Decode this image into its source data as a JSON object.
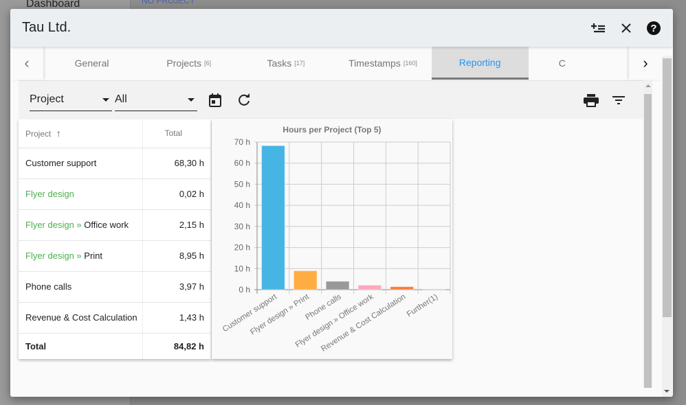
{
  "background": {
    "sidebar_item": "Dashboard",
    "project_label": "NO PROJECT"
  },
  "modal": {
    "title": "Tau Ltd.",
    "icons": [
      "playlist-add-icon",
      "close-icon",
      "help-icon"
    ]
  },
  "tabs": [
    {
      "label": "General",
      "count": ""
    },
    {
      "label": "Projects",
      "count": "[6]"
    },
    {
      "label": "Tasks",
      "count": "[17]"
    },
    {
      "label": "Timestamps",
      "count": "[160]"
    },
    {
      "label": "Reporting",
      "count": "",
      "active": true
    },
    {
      "label": "C",
      "count": ""
    }
  ],
  "toolbar": {
    "group_by": "Project",
    "filter": "All"
  },
  "table": {
    "headers": {
      "project": "Project",
      "total": "Total"
    },
    "rows": [
      {
        "parent": "",
        "name": "Customer support",
        "total": "68,30 h"
      },
      {
        "parent": "Flyer design",
        "name": "",
        "total": "0,02 h"
      },
      {
        "parent": "Flyer design »",
        "name": " Office work",
        "total": "2,15 h"
      },
      {
        "parent": "Flyer design »",
        "name": " Print",
        "total": "8,95 h"
      },
      {
        "parent": "",
        "name": "Phone calls",
        "total": "3,97 h"
      },
      {
        "parent": "",
        "name": "Revenue & Cost Calculation",
        "total": "1,43 h"
      }
    ],
    "footer": {
      "label": "Total",
      "total": "84,82 h"
    }
  },
  "chart_data": {
    "type": "bar",
    "title": "Hours per Project (Top 5)",
    "categories": [
      "Customer support",
      "Flyer design » Print",
      "Phone calls",
      "Flyer design » Office work",
      "Revenue & Cost Calculation",
      "Further(1)"
    ],
    "values": [
      68.3,
      8.95,
      3.97,
      2.15,
      1.43,
      0.02
    ],
    "colors": [
      "#47b5e3",
      "#ffad42",
      "#999999",
      "#ffa8bb",
      "#ff7b3a",
      "#cccccc"
    ],
    "ylim": [
      0,
      70
    ],
    "yticks": [
      "0 h",
      "10 h",
      "20 h",
      "30 h",
      "40 h",
      "50 h",
      "60 h",
      "70 h"
    ],
    "grid": true
  }
}
